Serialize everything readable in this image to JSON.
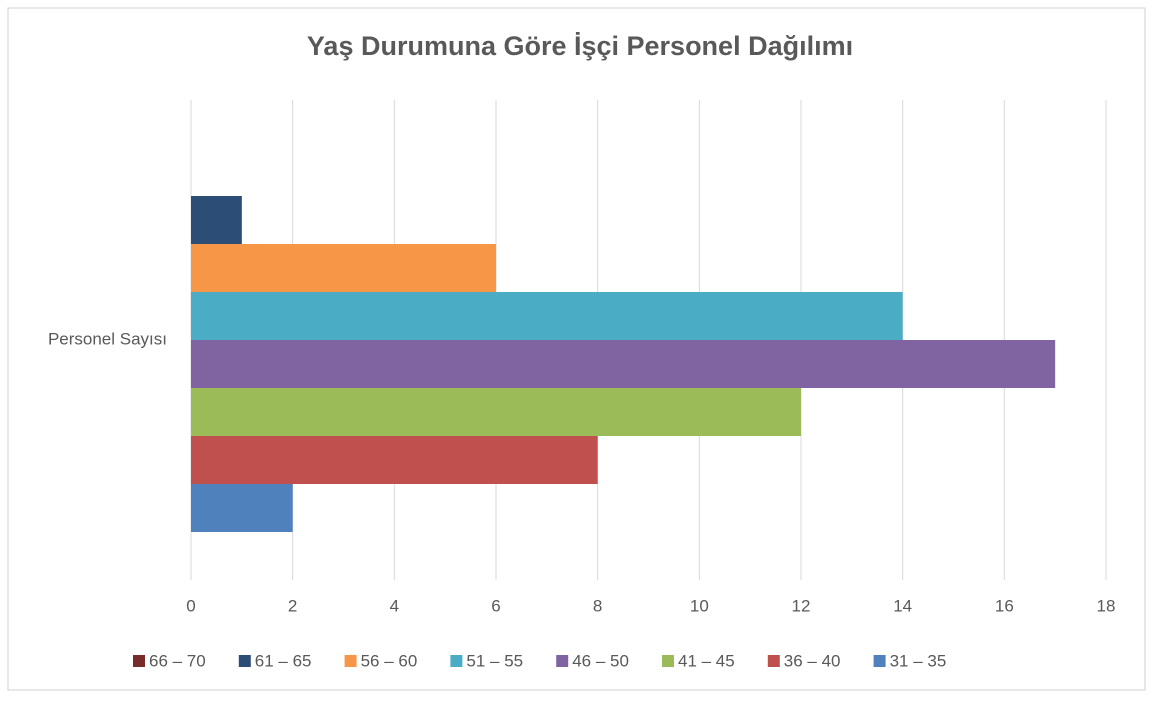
{
  "chart_data": {
    "type": "bar",
    "orientation": "horizontal",
    "title": "Yaş Durumuna Göre İşçi Personel Dağılımı",
    "categories": [
      "Personel Sayısı"
    ],
    "series": [
      {
        "name": "66 – 70",
        "color": "#772c2a",
        "values": [
          0
        ]
      },
      {
        "name": "61 – 65",
        "color": "#2c4d75",
        "values": [
          1
        ]
      },
      {
        "name": "56 – 60",
        "color": "#f79646",
        "values": [
          6
        ]
      },
      {
        "name": "51 – 55",
        "color": "#4bacc6",
        "values": [
          14
        ]
      },
      {
        "name": "46 – 50",
        "color": "#8064a2",
        "values": [
          17
        ]
      },
      {
        "name": "41 – 45",
        "color": "#9bbb59",
        "values": [
          12
        ]
      },
      {
        "name": "36 – 40",
        "color": "#c0504d",
        "values": [
          8
        ]
      },
      {
        "name": "31 – 35",
        "color": "#4f81bd",
        "values": [
          2
        ]
      }
    ],
    "xlim": [
      0,
      18
    ],
    "xticks": [
      0,
      2,
      4,
      6,
      8,
      10,
      12,
      14,
      16,
      18
    ],
    "grid": true,
    "legend": "bottom"
  }
}
